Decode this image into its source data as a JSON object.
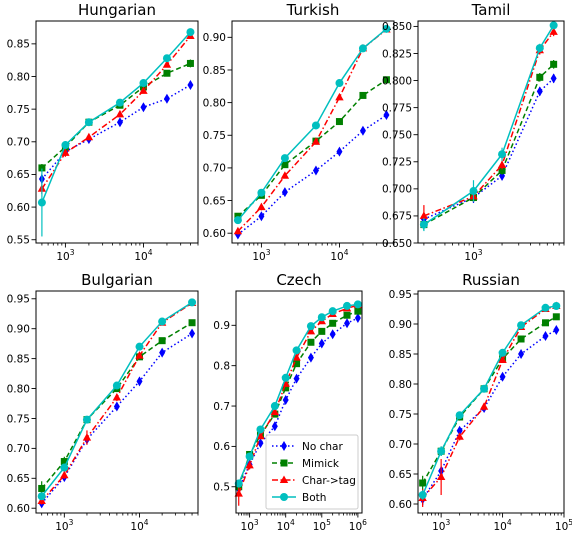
{
  "chart_data": [
    {
      "type": "line",
      "title": "Hungarian",
      "xscale": "log",
      "xlim": [
        420,
        50000
      ],
      "ylim": [
        0.545,
        0.885
      ],
      "xticks": [
        {
          "value": 1000,
          "label": "10^3"
        },
        {
          "value": 10000,
          "label": "10^4"
        }
      ],
      "yticks": [
        0.55,
        0.6,
        0.65,
        0.7,
        0.75,
        0.8,
        0.85
      ],
      "ytick_labels": [
        "0.55",
        "0.60",
        "0.65",
        "0.70",
        "0.75",
        "0.80",
        "0.85"
      ],
      "series": [
        {
          "name": "No char",
          "x": [
            500,
            1000,
            2000,
            5000,
            10000,
            20000,
            40000
          ],
          "y": [
            0.643,
            0.685,
            0.704,
            0.73,
            0.753,
            0.766,
            0.787
          ],
          "err": [
            0.008,
            0.006,
            0.005,
            0.004,
            0.004,
            0.004,
            0.006
          ]
        },
        {
          "name": "Mimick",
          "x": [
            500,
            1000,
            2000,
            5000,
            10000,
            20000,
            40000
          ],
          "y": [
            0.66,
            0.692,
            0.73,
            0.756,
            0.784,
            0.805,
            0.82
          ],
          "err": [
            0.006,
            0.005,
            0.004,
            0.004,
            0.004,
            0.004,
            0.006
          ]
        },
        {
          "name": "Char->tag",
          "x": [
            500,
            1000,
            2000,
            5000,
            10000,
            20000,
            40000
          ],
          "y": [
            0.628,
            0.683,
            0.707,
            0.742,
            0.778,
            0.818,
            0.862
          ],
          "err": [
            0.008,
            0.006,
            0.005,
            0.004,
            0.004,
            0.004,
            0.004
          ]
        },
        {
          "name": "Both",
          "x": [
            500,
            1000,
            2000,
            5000,
            10000,
            20000,
            40000
          ],
          "y": [
            0.607,
            0.695,
            0.73,
            0.76,
            0.79,
            0.828,
            0.868
          ],
          "err": [
            0.052,
            0.006,
            0.004,
            0.004,
            0.004,
            0.004,
            0.003
          ]
        }
      ]
    },
    {
      "type": "line",
      "title": "Turkish",
      "xscale": "log",
      "xlim": [
        420,
        50000
      ],
      "ylim": [
        0.585,
        0.925
      ],
      "xticks": [
        {
          "value": 1000,
          "label": "10^3"
        },
        {
          "value": 10000,
          "label": "10^4"
        }
      ],
      "yticks": [
        0.6,
        0.65,
        0.7,
        0.75,
        0.8,
        0.85,
        0.9
      ],
      "ytick_labels": [
        "0.60",
        "0.65",
        "0.70",
        "0.75",
        "0.80",
        "0.85",
        "0.90"
      ],
      "series": [
        {
          "name": "No char",
          "x": [
            500,
            1000,
            2000,
            5000,
            10000,
            20000,
            40000
          ],
          "y": [
            0.598,
            0.626,
            0.663,
            0.696,
            0.725,
            0.757,
            0.781
          ],
          "err": [
            0.005,
            0.005,
            0.004,
            0.004,
            0.004,
            0.004,
            0.004
          ]
        },
        {
          "name": "Mimick",
          "x": [
            500,
            1000,
            2000,
            5000,
            10000,
            20000,
            40000
          ],
          "y": [
            0.626,
            0.658,
            0.705,
            0.741,
            0.771,
            0.811,
            0.835
          ],
          "err": [
            0.005,
            0.004,
            0.004,
            0.004,
            0.004,
            0.004,
            0.004
          ]
        },
        {
          "name": "Char->tag",
          "x": [
            500,
            1000,
            2000,
            5000,
            10000,
            20000,
            40000
          ],
          "y": [
            0.603,
            0.64,
            0.688,
            0.74,
            0.808,
            0.883,
            0.912
          ],
          "err": [
            0.005,
            0.005,
            0.004,
            0.004,
            0.004,
            0.004,
            0.004
          ]
        },
        {
          "name": "Both",
          "x": [
            500,
            1000,
            2000,
            5000,
            10000,
            20000,
            40000
          ],
          "y": [
            0.62,
            0.662,
            0.715,
            0.765,
            0.83,
            0.883,
            0.913
          ],
          "err": [
            0.005,
            0.004,
            0.004,
            0.004,
            0.004,
            0.004,
            0.004
          ]
        }
      ]
    },
    {
      "type": "line",
      "title": "Tamil",
      "xscale": "log",
      "xlim": [
        260,
        9000
      ],
      "ylim": [
        0.65,
        0.855
      ],
      "xticks": [
        {
          "value": 1000,
          "label": "10^3"
        }
      ],
      "yticks": [
        0.65,
        0.675,
        0.7,
        0.725,
        0.75,
        0.775,
        0.8,
        0.825,
        0.85
      ],
      "ytick_labels": [
        "0.650",
        "0.675",
        "0.700",
        "0.725",
        "0.750",
        "0.775",
        "0.800",
        "0.825",
        "0.850"
      ],
      "series": [
        {
          "name": "No char",
          "x": [
            300,
            1000,
            2000,
            5000,
            7000
          ],
          "y": [
            0.672,
            0.692,
            0.712,
            0.79,
            0.802
          ],
          "err": [
            0.006,
            0.005,
            0.004,
            0.004,
            0.004
          ]
        },
        {
          "name": "Mimick",
          "x": [
            300,
            1000,
            2000,
            5000,
            7000
          ],
          "y": [
            0.667,
            0.692,
            0.717,
            0.803,
            0.815
          ],
          "err": [
            0.005,
            0.004,
            0.004,
            0.004,
            0.004
          ]
        },
        {
          "name": "Char->tag",
          "x": [
            300,
            1000,
            2000,
            5000,
            7000
          ],
          "y": [
            0.675,
            0.693,
            0.722,
            0.828,
            0.845
          ],
          "err": [
            0.01,
            0.005,
            0.004,
            0.004,
            0.004
          ]
        },
        {
          "name": "Both",
          "x": [
            300,
            1000,
            2000,
            5000,
            7000
          ],
          "y": [
            0.667,
            0.698,
            0.732,
            0.83,
            0.851
          ],
          "err": [
            0.006,
            0.01,
            0.006,
            0.004,
            0.003
          ]
        }
      ]
    },
    {
      "type": "line",
      "title": "Bulgarian",
      "xscale": "log",
      "xlim": [
        420,
        60000
      ],
      "ylim": [
        0.592,
        0.963
      ],
      "xticks": [
        {
          "value": 1000,
          "label": "10^3"
        },
        {
          "value": 10000,
          "label": "10^4"
        }
      ],
      "yticks": [
        0.6,
        0.65,
        0.7,
        0.75,
        0.8,
        0.85,
        0.9,
        0.95
      ],
      "ytick_labels": [
        "0.60",
        "0.65",
        "0.70",
        "0.75",
        "0.80",
        "0.85",
        "0.90",
        "0.95"
      ],
      "series": [
        {
          "name": "No char",
          "x": [
            500,
            1000,
            2000,
            5000,
            10000,
            20000,
            50000
          ],
          "y": [
            0.608,
            0.652,
            0.715,
            0.77,
            0.812,
            0.86,
            0.892
          ],
          "err": [
            0.006,
            0.005,
            0.008,
            0.006,
            0.005,
            0.004,
            0.004
          ]
        },
        {
          "name": "Mimick",
          "x": [
            500,
            1000,
            2000,
            5000,
            10000,
            20000,
            50000
          ],
          "y": [
            0.633,
            0.678,
            0.748,
            0.8,
            0.853,
            0.88,
            0.91
          ],
          "err": [
            0.012,
            0.008,
            0.006,
            0.006,
            0.005,
            0.004,
            0.004
          ]
        },
        {
          "name": "Char->tag",
          "x": [
            500,
            1000,
            2000,
            5000,
            10000,
            20000,
            50000
          ],
          "y": [
            0.612,
            0.655,
            0.718,
            0.785,
            0.855,
            0.91,
            0.943
          ],
          "err": [
            0.006,
            0.006,
            0.012,
            0.006,
            0.005,
            0.004,
            0.004
          ]
        },
        {
          "name": "Both",
          "x": [
            500,
            1000,
            2000,
            5000,
            10000,
            20000,
            50000
          ],
          "y": [
            0.62,
            0.668,
            0.748,
            0.805,
            0.87,
            0.912,
            0.944
          ],
          "err": [
            0.006,
            0.006,
            0.005,
            0.005,
            0.004,
            0.004,
            0.004
          ]
        }
      ]
    },
    {
      "type": "line",
      "title": "Czech",
      "xscale": "log",
      "xlim": [
        420,
        1300000
      ],
      "ylim": [
        0.435,
        0.985
      ],
      "xticks": [
        {
          "value": 1000,
          "label": "10^3"
        },
        {
          "value": 10000,
          "label": "10^4"
        },
        {
          "value": 100000,
          "label": "10^5"
        },
        {
          "value": 1000000,
          "label": "10^6"
        }
      ],
      "yticks": [
        0.5,
        0.6,
        0.7,
        0.8,
        0.9
      ],
      "ytick_labels": [
        "0.5",
        "0.6",
        "0.7",
        "0.8",
        "0.9"
      ],
      "series": [
        {
          "name": "No char",
          "x": [
            500,
            1000,
            2000,
            5000,
            10000,
            20000,
            50000,
            100000,
            200000,
            500000,
            1000000
          ],
          "y": [
            0.495,
            0.555,
            0.608,
            0.65,
            0.715,
            0.768,
            0.82,
            0.855,
            0.878,
            0.905,
            0.918
          ],
          "err": [
            0.01,
            0.008,
            0.006,
            0.006,
            0.005,
            0.004,
            0.004,
            0.004,
            0.004,
            0.004,
            0.004
          ]
        },
        {
          "name": "Mimick",
          "x": [
            500,
            1000,
            2000,
            5000,
            10000,
            20000,
            50000,
            100000,
            200000,
            500000,
            1000000
          ],
          "y": [
            0.5,
            0.58,
            0.628,
            0.68,
            0.745,
            0.805,
            0.858,
            0.885,
            0.905,
            0.925,
            0.935
          ],
          "err": [
            0.01,
            0.008,
            0.006,
            0.006,
            0.005,
            0.004,
            0.004,
            0.004,
            0.004,
            0.004,
            0.004
          ]
        },
        {
          "name": "Char->tag",
          "x": [
            500,
            1000,
            2000,
            5000,
            10000,
            20000,
            50000,
            100000,
            200000,
            500000,
            1000000
          ],
          "y": [
            0.483,
            0.553,
            0.625,
            0.685,
            0.755,
            0.82,
            0.885,
            0.91,
            0.928,
            0.942,
            0.95
          ],
          "err": [
            0.03,
            0.01,
            0.006,
            0.006,
            0.005,
            0.004,
            0.004,
            0.004,
            0.004,
            0.004,
            0.004
          ]
        },
        {
          "name": "Both",
          "x": [
            500,
            1000,
            2000,
            5000,
            10000,
            20000,
            50000,
            100000,
            200000,
            500000,
            1000000
          ],
          "y": [
            0.508,
            0.575,
            0.642,
            0.7,
            0.77,
            0.838,
            0.898,
            0.92,
            0.935,
            0.948,
            0.952
          ],
          "err": [
            0.01,
            0.008,
            0.006,
            0.006,
            0.005,
            0.004,
            0.004,
            0.004,
            0.004,
            0.004,
            0.004
          ]
        }
      ],
      "legend": {
        "placement": "lower-right",
        "entries": [
          "No char",
          "Mimick",
          "Char->tag",
          "Both"
        ]
      }
    },
    {
      "type": "line",
      "title": "Russian",
      "xscale": "log",
      "xlim": [
        420,
        100000
      ],
      "ylim": [
        0.585,
        0.955
      ],
      "xticks": [
        {
          "value": 1000,
          "label": "10^3"
        },
        {
          "value": 10000,
          "label": "10^4"
        },
        {
          "value": 100000,
          "label": "10^5"
        }
      ],
      "yticks": [
        0.6,
        0.65,
        0.7,
        0.75,
        0.8,
        0.85,
        0.9,
        0.95
      ],
      "ytick_labels": [
        "0.60",
        "0.65",
        "0.70",
        "0.75",
        "0.80",
        "0.85",
        "0.90",
        "0.95"
      ],
      "series": [
        {
          "name": "No char",
          "x": [
            500,
            1000,
            2000,
            5000,
            10000,
            20000,
            50000,
            75000
          ],
          "y": [
            0.608,
            0.655,
            0.722,
            0.76,
            0.812,
            0.85,
            0.88,
            0.89
          ],
          "err": [
            0.01,
            0.008,
            0.006,
            0.006,
            0.005,
            0.004,
            0.004,
            0.004
          ]
        },
        {
          "name": "Mimick",
          "x": [
            500,
            1000,
            2000,
            5000,
            10000,
            20000,
            50000,
            75000
          ],
          "y": [
            0.635,
            0.688,
            0.745,
            0.792,
            0.842,
            0.875,
            0.902,
            0.912
          ],
          "err": [
            0.012,
            0.008,
            0.006,
            0.006,
            0.005,
            0.004,
            0.004,
            0.004
          ]
        },
        {
          "name": "Char->tag",
          "x": [
            500,
            1000,
            2000,
            5000,
            10000,
            20000,
            50000,
            75000
          ],
          "y": [
            0.61,
            0.645,
            0.712,
            0.762,
            0.84,
            0.895,
            0.925,
            0.93
          ],
          "err": [
            0.015,
            0.03,
            0.006,
            0.006,
            0.005,
            0.004,
            0.004,
            0.004
          ]
        },
        {
          "name": "Both",
          "x": [
            500,
            1000,
            2000,
            5000,
            10000,
            20000,
            50000,
            75000
          ],
          "y": [
            0.615,
            0.688,
            0.748,
            0.792,
            0.852,
            0.898,
            0.927,
            0.93
          ],
          "err": [
            0.008,
            0.008,
            0.006,
            0.005,
            0.004,
            0.004,
            0.004,
            0.004
          ]
        }
      ]
    }
  ],
  "series_styles": [
    {
      "name": "No char",
      "color": "#0000ff",
      "marker": "diamond",
      "dash": "dotted"
    },
    {
      "name": "Mimick",
      "color": "#008000",
      "marker": "square",
      "dash": "dashed"
    },
    {
      "name": "Char->tag",
      "color": "#ff0000",
      "marker": "triangle",
      "dash": "dashdot"
    },
    {
      "name": "Both",
      "color": "#00bfbf",
      "marker": "circle",
      "dash": "solid"
    }
  ]
}
